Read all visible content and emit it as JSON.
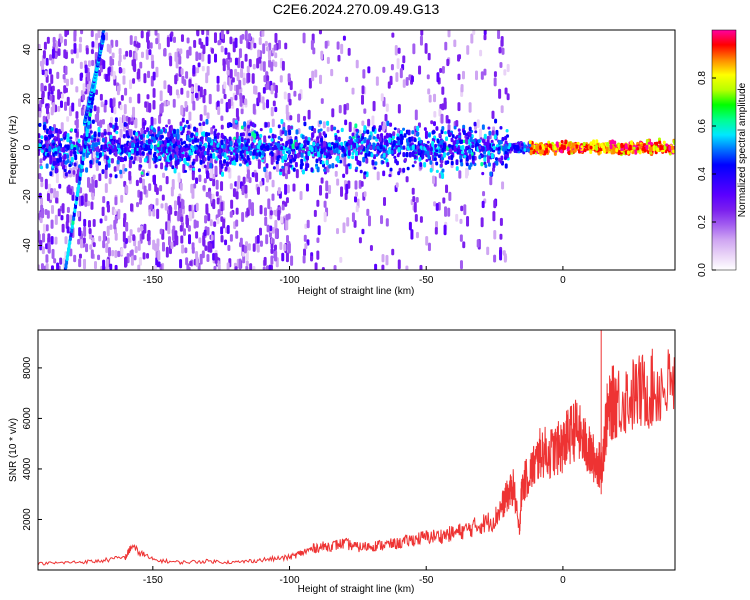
{
  "figure": {
    "title": "C2E6.2024.270.09.49.G13"
  },
  "chart_data": [
    {
      "type": "heatmap",
      "xlabel": "Height of straight line (km)",
      "ylabel": "Frequency (Hz)",
      "xlim": [
        -192,
        41
      ],
      "ylim": [
        -50,
        48
      ],
      "xticks": [
        "-150",
        "-100",
        "-50",
        "0"
      ],
      "yticks": [
        "-40",
        "-20",
        "0",
        "20",
        "40"
      ],
      "colorbar": {
        "label": "Normalized spectral amplitude",
        "range": [
          0.0,
          1.0
        ],
        "ticks": [
          "0.0",
          "0.2",
          "0.4",
          "0.6",
          "0.8"
        ],
        "colors": [
          "#ffffff",
          "#e9d3f7",
          "#cfa6f2",
          "#a35ef0",
          "#7b1fee",
          "#5a00ff",
          "#2f00ff",
          "#0000ff",
          "#0070ff",
          "#00e8ff",
          "#00ff90",
          "#00ff00",
          "#b8ff00",
          "#ffff00",
          "#ff8a00",
          "#ff0000",
          "#ff00a0"
        ]
      },
      "features": [
        {
          "name": "main signal band",
          "x": [
            -192,
            41
          ],
          "y": [
            0,
            0
          ],
          "peak_amplitude": 1.0
        },
        {
          "name": "rising streak A",
          "x": [
            [
              -182,
              -50
            ],
            [
              -168,
              48
            ]
          ]
        },
        {
          "name": "rising streak B",
          "x": [
            [
              -175,
              10
            ],
            [
              -168,
              45
            ]
          ]
        }
      ]
    },
    {
      "type": "line",
      "xlabel": "Height of straight line (km)",
      "ylabel": "SNR (10 * v/v)",
      "xlim": [
        -192,
        41
      ],
      "ylim": [
        0,
        9500
      ],
      "xticks": [
        "-150",
        "-100",
        "-50",
        "0"
      ],
      "yticks": [
        "2000",
        "4000",
        "6000",
        "8000"
      ],
      "color": "#ee3333",
      "series": [
        {
          "x": [
            -192,
            -180,
            -170,
            -160,
            -158,
            -150,
            -140,
            -130,
            -120,
            -110,
            -100,
            -95,
            -90,
            -85,
            -80,
            -75,
            -70,
            -65,
            -60,
            -55,
            -50,
            -45,
            -40,
            -35,
            -30,
            -25,
            -22,
            -20,
            -18,
            -16,
            -15,
            -12,
            -10,
            -8,
            -5,
            -2,
            0,
            2,
            5,
            8,
            10,
            12,
            14,
            16,
            18,
            20,
            25,
            30,
            35,
            41
          ],
          "y": [
            250,
            300,
            350,
            500,
            900,
            400,
            300,
            350,
            300,
            400,
            500,
            700,
            900,
            950,
            1050,
            900,
            950,
            1000,
            1050,
            1200,
            1300,
            1350,
            1450,
            1600,
            1800,
            2000,
            2600,
            3000,
            3300,
            1500,
            3300,
            3900,
            4200,
            4700,
            4600,
            4800,
            4900,
            5300,
            5600,
            5000,
            4600,
            4300,
            4100,
            6000,
            6600,
            6700,
            6900,
            7100,
            7200,
            7300
          ]
        }
      ],
      "annotations": [
        {
          "x": 14,
          "y": 9500,
          "note": "spike"
        }
      ]
    }
  ]
}
